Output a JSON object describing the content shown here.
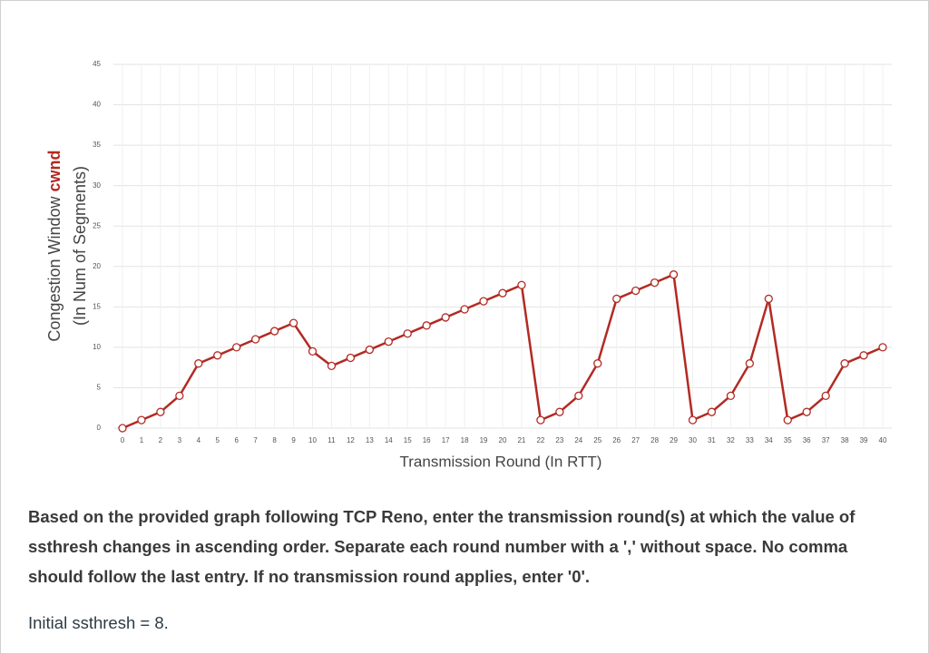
{
  "chart_data": {
    "type": "line",
    "y_label": "Congestion Window",
    "y_label_emphasis": "cwnd",
    "y_label_sub": "(In Num of Segments)",
    "x_label": "Transmission Round (In RTT)",
    "x": [
      0,
      1,
      2,
      3,
      4,
      5,
      6,
      7,
      8,
      9,
      10,
      11,
      12,
      13,
      14,
      15,
      16,
      17,
      18,
      19,
      20,
      21,
      22,
      23,
      24,
      25,
      26,
      27,
      28,
      29,
      30,
      31,
      32,
      33,
      34,
      35,
      36,
      37,
      38,
      39,
      40
    ],
    "series": [
      {
        "color": "#b22a23",
        "values": [
          0,
          1,
          2,
          4,
          8,
          9,
          10,
          11,
          12,
          13,
          9.5,
          7.7,
          8.7,
          9.7,
          10.7,
          11.7,
          12.7,
          13.7,
          14.7,
          15.7,
          16.7,
          17.7,
          1,
          2,
          4,
          8,
          16,
          17,
          18,
          19,
          1,
          2,
          4,
          8,
          16,
          1,
          2,
          4,
          8,
          9,
          10
        ]
      }
    ],
    "xlim": [
      0,
      40
    ],
    "xticks": [
      0,
      1,
      2,
      3,
      4,
      5,
      6,
      7,
      8,
      9,
      10,
      11,
      12,
      13,
      14,
      15,
      16,
      17,
      18,
      19,
      20,
      21,
      22,
      23,
      24,
      25,
      26,
      27,
      28,
      29,
      30,
      31,
      32,
      33,
      34,
      35,
      36,
      37,
      38,
      39,
      40
    ],
    "ylim": [
      0,
      45
    ],
    "yticks": [
      0,
      5,
      10,
      15,
      20,
      25,
      30,
      35,
      40,
      45
    ],
    "grid": true
  },
  "question": {
    "paragraphs": [
      "Based on the provided graph following TCP Reno, enter the transmission round(s) at which the value of ssthresh changes in ascending order. Separate each round number with a ',' without space. No comma should follow the last entry. If no transmission round applies, enter '0'.",
      "Initial ssthresh = 8."
    ]
  }
}
